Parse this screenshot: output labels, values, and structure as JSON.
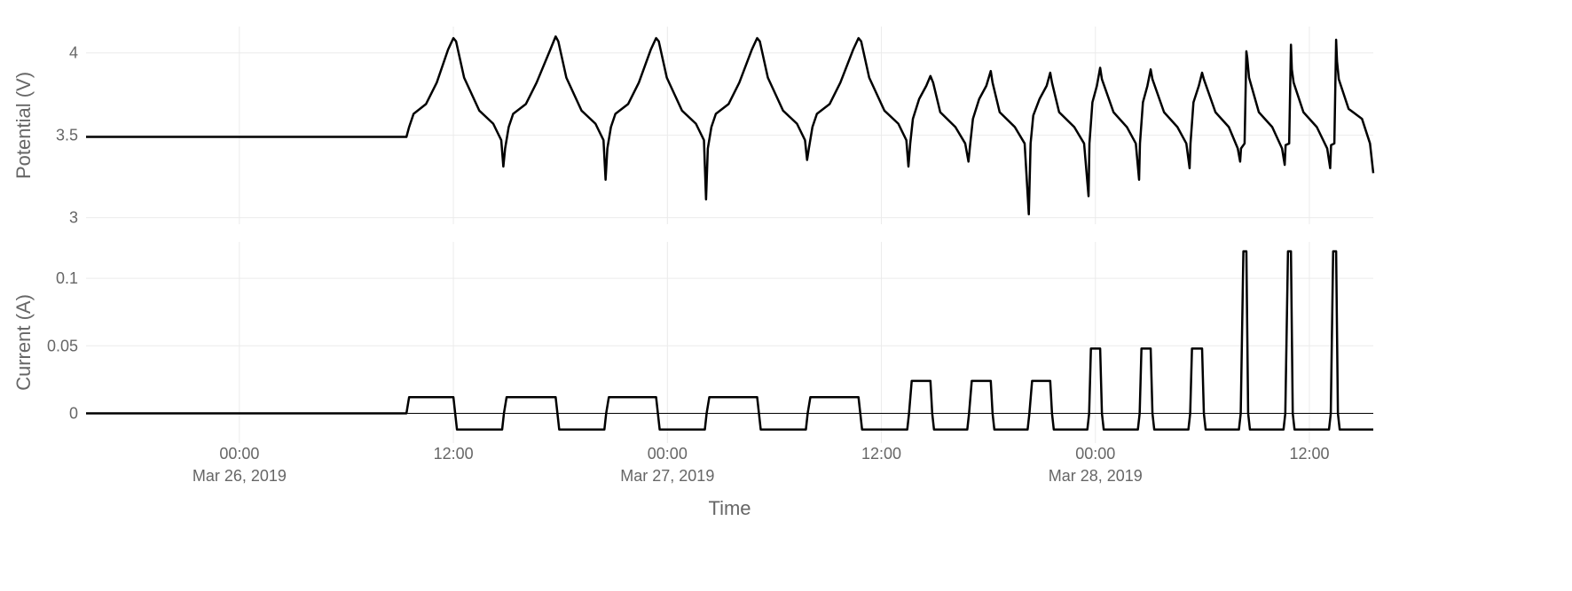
{
  "chart_data": [
    {
      "type": "line",
      "ylabel": "Potential (V)",
      "ylim": [
        2.96,
        4.16
      ],
      "yticks": [
        3,
        3.5,
        4
      ],
      "grid": true,
      "x": [
        "2019-03-25 15:24",
        "2019-03-26 09:22",
        "2019-03-26 09:31",
        "2019-03-26 09:46",
        "2019-03-26 10:28",
        "2019-03-26 11:04",
        "2019-03-26 11:42",
        "2019-03-26 12:00",
        "2019-03-26 12:09",
        "2019-03-26 12:36",
        "2019-03-26 13:27",
        "2019-03-26 14:14",
        "2019-03-26 14:41",
        "2019-03-26 14:48",
        "2019-03-26 14:54",
        "2019-03-26 15:06",
        "2019-03-26 15:21",
        "2019-03-26 16:04",
        "2019-03-26 16:40",
        "2019-03-26 17:26",
        "2019-03-26 17:44",
        "2019-03-26 17:53",
        "2019-03-26 18:20",
        "2019-03-26 19:11",
        "2019-03-26 19:58",
        "2019-03-26 20:25",
        "2019-03-26 20:32",
        "2019-03-26 20:38",
        "2019-03-26 20:50",
        "2019-03-26 21:05",
        "2019-03-26 21:48",
        "2019-03-26 22:24",
        "2019-03-26 23:04",
        "2019-03-26 23:22",
        "2019-03-26 23:31",
        "2019-03-26 23:58",
        "2019-03-27 00:49",
        "2019-03-27 01:36",
        "2019-03-27 02:03",
        "2019-03-27 02:10",
        "2019-03-27 02:16",
        "2019-03-27 02:28",
        "2019-03-27 02:43",
        "2019-03-27 03:26",
        "2019-03-27 04:02",
        "2019-03-27 04:44",
        "2019-03-27 05:02",
        "2019-03-27 05:11",
        "2019-03-27 05:38",
        "2019-03-27 06:29",
        "2019-03-27 07:16",
        "2019-03-27 07:43",
        "2019-03-27 07:50",
        "2019-03-27 07:56",
        "2019-03-27 08:08",
        "2019-03-27 08:23",
        "2019-03-27 09:06",
        "2019-03-27 09:42",
        "2019-03-27 10:25",
        "2019-03-27 10:43",
        "2019-03-27 10:52",
        "2019-03-27 11:19",
        "2019-03-27 12:10",
        "2019-03-27 12:57",
        "2019-03-27 13:24",
        "2019-03-27 13:31",
        "2019-03-27 13:37",
        "2019-03-27 13:46",
        "2019-03-27 14:07",
        "2019-03-27 14:31",
        "2019-03-27 14:45",
        "2019-03-27 14:54",
        "2019-03-27 15:18",
        "2019-03-27 16:09",
        "2019-03-27 16:42",
        "2019-03-27 16:53",
        "2019-03-27 16:59",
        "2019-03-27 17:08",
        "2019-03-27 17:29",
        "2019-03-27 17:53",
        "2019-03-27 18:08",
        "2019-03-27 18:14",
        "2019-03-27 18:38",
        "2019-03-27 19:29",
        "2019-03-27 20:02",
        "2019-03-27 20:16",
        "2019-03-27 20:22",
        "2019-03-27 20:31",
        "2019-03-27 20:52",
        "2019-03-27 21:16",
        "2019-03-27 21:28",
        "2019-03-27 21:34",
        "2019-03-27 21:58",
        "2019-03-27 22:49",
        "2019-03-27 23:22",
        "2019-03-27 23:37",
        "2019-03-27 23:40",
        "2019-03-27 23:50",
        "2019-03-28 00:05",
        "2019-03-28 00:16",
        "2019-03-28 00:22",
        "2019-03-28 01:01",
        "2019-03-28 01:46",
        "2019-03-28 02:16",
        "2019-03-28 02:27",
        "2019-03-28 02:30",
        "2019-03-28 02:40",
        "2019-03-28 02:55",
        "2019-03-28 03:06",
        "2019-03-28 03:12",
        "2019-03-28 03:51",
        "2019-03-28 04:36",
        "2019-03-28 05:06",
        "2019-03-28 05:17",
        "2019-03-28 05:20",
        "2019-03-28 05:30",
        "2019-03-28 05:48",
        "2019-03-28 05:59",
        "2019-03-28 06:05",
        "2019-03-28 06:44",
        "2019-03-28 07:29",
        "2019-03-28 07:59",
        "2019-03-28 08:07",
        "2019-03-28 08:10",
        "2019-03-28 08:22",
        "2019-03-28 08:28",
        "2019-03-28 08:31",
        "2019-03-28 08:37",
        "2019-03-28 09:10",
        "2019-03-28 09:55",
        "2019-03-28 10:28",
        "2019-03-28 10:37",
        "2019-03-28 10:40",
        "2019-03-28 10:52",
        "2019-03-28 10:58",
        "2019-03-28 11:01",
        "2019-03-28 11:07",
        "2019-03-28 11:40",
        "2019-03-28 12:25",
        "2019-03-28 13:00",
        "2019-03-28 13:10",
        "2019-03-28 13:13",
        "2019-03-28 13:24",
        "2019-03-28 13:30",
        "2019-03-28 13:33",
        "2019-03-28 13:39",
        "2019-03-28 14:12",
        "2019-03-28 14:57",
        "2019-03-28 15:24",
        "2019-03-28 15:35"
      ],
      "series": [
        {
          "color": "#000000",
          "values": [
            3.49,
            3.49,
            3.55,
            3.63,
            3.69,
            3.82,
            4.02,
            4.09,
            4.07,
            3.85,
            3.65,
            3.57,
            3.47,
            3.31,
            3.42,
            3.55,
            3.63,
            3.69,
            3.82,
            4.02,
            4.1,
            4.07,
            3.85,
            3.65,
            3.57,
            3.47,
            3.23,
            3.42,
            3.55,
            3.63,
            3.69,
            3.82,
            4.02,
            4.09,
            4.07,
            3.85,
            3.65,
            3.57,
            3.47,
            3.11,
            3.42,
            3.55,
            3.63,
            3.69,
            3.82,
            4.02,
            4.09,
            4.07,
            3.85,
            3.65,
            3.57,
            3.47,
            3.35,
            3.42,
            3.55,
            3.63,
            3.69,
            3.82,
            4.02,
            4.09,
            4.07,
            3.85,
            3.65,
            3.57,
            3.47,
            3.31,
            3.45,
            3.6,
            3.72,
            3.8,
            3.86,
            3.82,
            3.64,
            3.55,
            3.45,
            3.34,
            3.45,
            3.6,
            3.72,
            3.8,
            3.89,
            3.82,
            3.64,
            3.55,
            3.45,
            3.02,
            3.45,
            3.62,
            3.72,
            3.8,
            3.88,
            3.82,
            3.64,
            3.55,
            3.45,
            3.13,
            3.45,
            3.7,
            3.8,
            3.91,
            3.84,
            3.64,
            3.55,
            3.45,
            3.23,
            3.45,
            3.7,
            3.8,
            3.9,
            3.84,
            3.64,
            3.55,
            3.45,
            3.3,
            3.45,
            3.7,
            3.8,
            3.88,
            3.84,
            3.64,
            3.55,
            3.42,
            3.34,
            3.42,
            3.45,
            4.01,
            3.97,
            3.85,
            3.64,
            3.55,
            3.42,
            3.32,
            3.44,
            3.45,
            4.05,
            3.9,
            3.82,
            3.64,
            3.55,
            3.42,
            3.3,
            3.44,
            3.45,
            4.08,
            3.95,
            3.84,
            3.66,
            3.6,
            3.45,
            3.27
          ]
        }
      ]
    },
    {
      "type": "line",
      "ylabel": "Current (A)",
      "xlabel": "Time",
      "ylim": [
        -0.022,
        0.127
      ],
      "yticks": [
        0,
        0.05,
        0.1
      ],
      "grid": true,
      "xlim": [
        "2019-03-25 15:24",
        "2019-03-28 15:35"
      ],
      "xticks": [
        {
          "value": "2019-03-26 00:00",
          "label": [
            "00:00",
            "Mar 26, 2019"
          ]
        },
        {
          "value": "2019-03-26 12:00",
          "label": "12:00"
        },
        {
          "value": "2019-03-27 00:00",
          "label": [
            "00:00",
            "Mar 27, 2019"
          ]
        },
        {
          "value": "2019-03-27 12:00",
          "label": "12:00"
        },
        {
          "value": "2019-03-28 00:00",
          "label": [
            "00:00",
            "Mar 28, 2019"
          ]
        },
        {
          "value": "2019-03-28 12:00",
          "label": "12:00"
        }
      ],
      "x": [
        "2019-03-25 15:24",
        "2019-03-26 09:22",
        "2019-03-26 09:31",
        "2019-03-26 12:00",
        "2019-03-26 12:06",
        "2019-03-26 12:12",
        "2019-03-26 14:44",
        "2019-03-26 14:50",
        "2019-03-26 14:59",
        "2019-03-26 17:44",
        "2019-03-26 17:50",
        "2019-03-26 17:56",
        "2019-03-26 20:28",
        "2019-03-26 20:34",
        "2019-03-26 20:43",
        "2019-03-26 23:22",
        "2019-03-26 23:28",
        "2019-03-26 23:34",
        "2019-03-27 02:06",
        "2019-03-27 02:12",
        "2019-03-27 02:21",
        "2019-03-27 05:02",
        "2019-03-27 05:08",
        "2019-03-27 05:14",
        "2019-03-27 07:46",
        "2019-03-27 07:52",
        "2019-03-27 08:01",
        "2019-03-27 10:43",
        "2019-03-27 10:49",
        "2019-03-27 10:55",
        "2019-03-27 13:27",
        "2019-03-27 13:33",
        "2019-03-27 13:42",
        "2019-03-27 14:45",
        "2019-03-27 14:51",
        "2019-03-27 14:57",
        "2019-03-27 16:49",
        "2019-03-27 16:55",
        "2019-03-27 17:04",
        "2019-03-27 18:08",
        "2019-03-27 18:14",
        "2019-03-27 18:20",
        "2019-03-27 20:12",
        "2019-03-27 20:18",
        "2019-03-27 20:27",
        "2019-03-27 21:28",
        "2019-03-27 21:34",
        "2019-03-27 21:40",
        "2019-03-27 23:33",
        "2019-03-27 23:39",
        "2019-03-27 23:45",
        "2019-03-28 00:16",
        "2019-03-28 00:22",
        "2019-03-28 00:28",
        "2019-03-28 02:23",
        "2019-03-28 02:29",
        "2019-03-28 02:35",
        "2019-03-28 03:06",
        "2019-03-28 03:12",
        "2019-03-28 03:18",
        "2019-03-28 05:13",
        "2019-03-28 05:19",
        "2019-03-28 05:25",
        "2019-03-28 05:59",
        "2019-03-28 06:05",
        "2019-03-28 06:11",
        "2019-03-28 08:03",
        "2019-03-28 08:09",
        "2019-03-28 08:18",
        "2019-03-28 08:28",
        "2019-03-28 08:34",
        "2019-03-28 08:40",
        "2019-03-28 10:33",
        "2019-03-28 10:39",
        "2019-03-28 10:48",
        "2019-03-28 10:58",
        "2019-03-28 11:04",
        "2019-03-28 11:10",
        "2019-03-28 13:06",
        "2019-03-28 13:12",
        "2019-03-28 13:20",
        "2019-03-28 13:30",
        "2019-03-28 13:36",
        "2019-03-28 13:42",
        "2019-03-28 15:35"
      ],
      "series": [
        {
          "color": "#000000",
          "values": [
            0,
            0,
            0.012,
            0.012,
            0,
            -0.012,
            -0.012,
            0,
            0.012,
            0.012,
            0,
            -0.012,
            -0.012,
            0,
            0.012,
            0.012,
            0,
            -0.012,
            -0.012,
            0,
            0.012,
            0.012,
            0,
            -0.012,
            -0.012,
            0,
            0.012,
            0.012,
            0,
            -0.012,
            -0.012,
            0,
            0.024,
            0.024,
            0,
            -0.012,
            -0.012,
            0,
            0.024,
            0.024,
            0,
            -0.012,
            -0.012,
            0,
            0.024,
            0.024,
            0,
            -0.012,
            -0.012,
            0,
            0.048,
            0.048,
            0,
            -0.012,
            -0.012,
            0,
            0.048,
            0.048,
            0,
            -0.012,
            -0.012,
            0,
            0.048,
            0.048,
            0,
            -0.012,
            -0.012,
            0,
            0.12,
            0.12,
            0,
            -0.012,
            -0.012,
            0,
            0.12,
            0.12,
            0,
            -0.012,
            -0.012,
            0,
            0.12,
            0.12,
            0,
            -0.012,
            -0.012
          ]
        }
      ]
    }
  ]
}
